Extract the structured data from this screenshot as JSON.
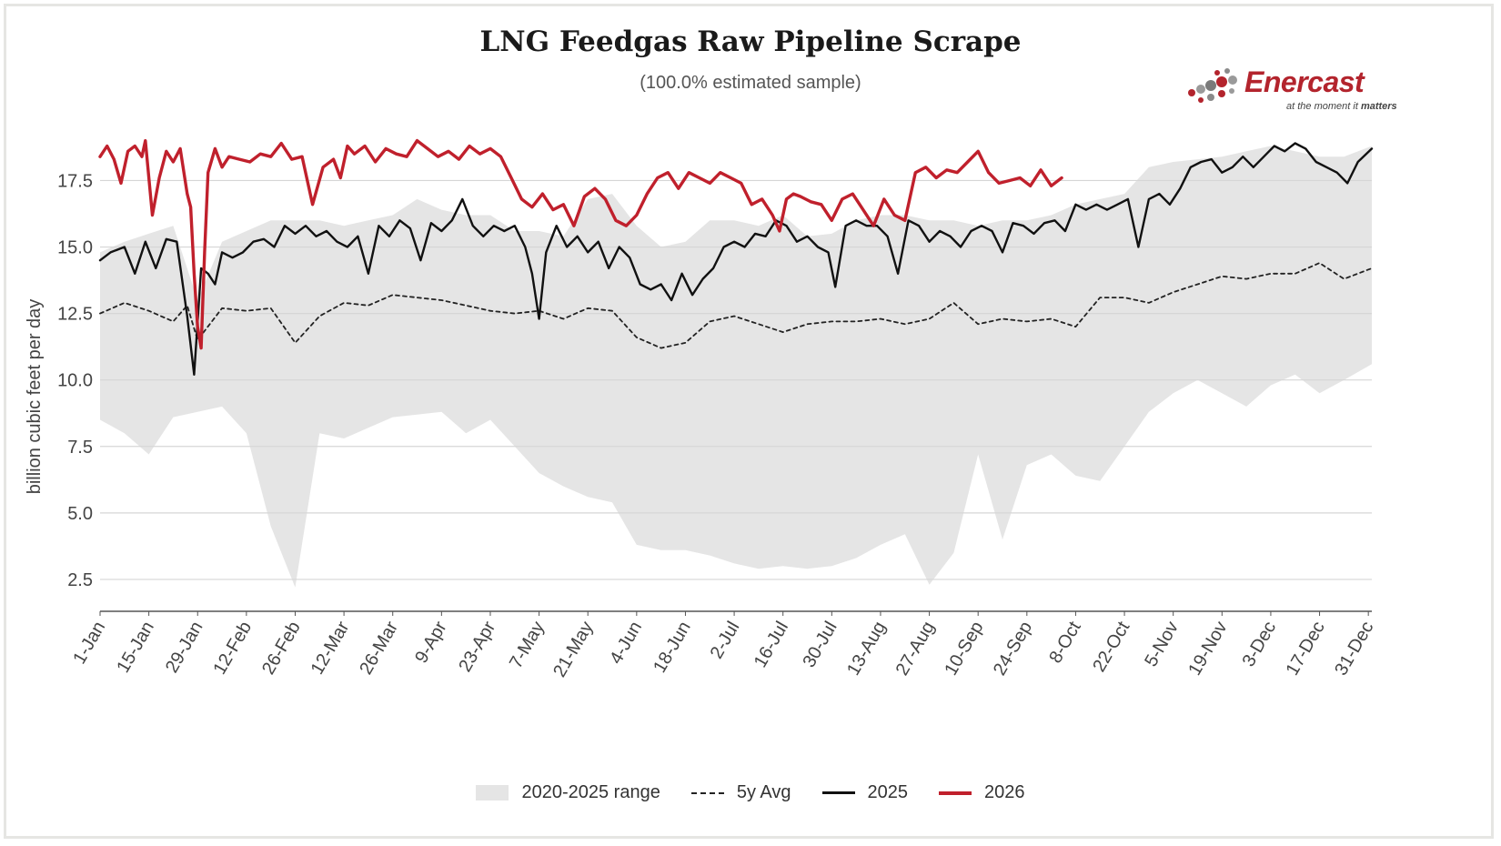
{
  "title": "LNG Feedgas Raw Pipeline Scrape",
  "subtitle": "(100.0% estimated sample)",
  "logo": {
    "name": "Enercast",
    "tagline_prefix": "at the moment it ",
    "tagline_emphasis": "matters"
  },
  "chart_data": {
    "type": "line",
    "title": "LNG Feedgas Raw Pipeline Scrape",
    "subtitle": "(100.0% estimated sample)",
    "xlabel": "",
    "ylabel": "billion cubic feet per day",
    "x_unit": "day of year",
    "xlim": [
      1,
      366
    ],
    "ylim": [
      1.3,
      19.5
    ],
    "y_ticks": [
      2.5,
      5.0,
      7.5,
      10.0,
      12.5,
      15.0,
      17.5
    ],
    "y_tick_labels": [
      "2.5",
      "5.0",
      "7.5",
      "10.0",
      "12.5",
      "15.0",
      "17.5"
    ],
    "x_ticks": [
      1,
      15,
      29,
      43,
      57,
      71,
      85,
      99,
      113,
      127,
      141,
      155,
      169,
      183,
      197,
      211,
      225,
      239,
      253,
      267,
      281,
      295,
      309,
      323,
      337,
      351,
      365
    ],
    "x_tick_labels": [
      "1-Jan",
      "15-Jan",
      "29-Jan",
      "12-Feb",
      "26-Feb",
      "12-Mar",
      "26-Mar",
      "9-Apr",
      "23-Apr",
      "7-May",
      "21-May",
      "4-Jun",
      "18-Jun",
      "2-Jul",
      "16-Jul",
      "30-Jul",
      "13-Aug",
      "27-Aug",
      "10-Sep",
      "24-Sep",
      "8-Oct",
      "22-Oct",
      "5-Nov",
      "19-Nov",
      "3-Dec",
      "17-Dec",
      "31-Dec"
    ],
    "grid": true,
    "legend_position": "bottom",
    "series": [
      {
        "name": "2020-2025 range",
        "kind": "band",
        "color": "#e5e5e5",
        "x": [
          1,
          8,
          15,
          22,
          29,
          36,
          43,
          50,
          57,
          64,
          71,
          78,
          85,
          92,
          99,
          106,
          113,
          120,
          127,
          134,
          141,
          148,
          155,
          162,
          169,
          176,
          183,
          190,
          197,
          204,
          211,
          218,
          225,
          232,
          239,
          246,
          253,
          260,
          267,
          274,
          281,
          288,
          295,
          302,
          309,
          316,
          323,
          330,
          337,
          344,
          351,
          358,
          366
        ],
        "low": [
          8.5,
          8.0,
          7.2,
          8.6,
          8.8,
          9.0,
          8.0,
          4.5,
          2.2,
          8.0,
          7.8,
          8.2,
          8.6,
          8.7,
          8.8,
          8.0,
          8.5,
          7.5,
          6.5,
          6.0,
          5.6,
          5.4,
          3.8,
          3.6,
          3.6,
          3.4,
          3.1,
          2.9,
          3.0,
          2.9,
          3.0,
          3.3,
          3.8,
          4.2,
          2.3,
          3.5,
          7.2,
          4.0,
          6.8,
          7.2,
          6.4,
          6.2,
          7.5,
          8.8,
          9.5,
          10.0,
          9.5,
          9.0,
          9.8,
          10.2,
          9.5,
          10.0,
          10.6
        ],
        "high": [
          14.8,
          15.2,
          15.5,
          15.8,
          13.0,
          15.2,
          15.6,
          16.0,
          16.0,
          16.0,
          15.8,
          16.0,
          16.2,
          16.8,
          16.4,
          16.2,
          16.2,
          15.6,
          15.6,
          15.4,
          16.8,
          17.0,
          15.8,
          15.0,
          15.2,
          16.0,
          16.0,
          15.8,
          16.2,
          15.4,
          15.5,
          16.0,
          16.2,
          16.2,
          16.0,
          16.0,
          15.8,
          16.0,
          16.0,
          16.2,
          16.6,
          16.8,
          17.0,
          18.0,
          18.2,
          18.3,
          18.4,
          18.6,
          18.8,
          18.6,
          18.4,
          18.4,
          18.8
        ]
      },
      {
        "name": "5y Avg",
        "kind": "line",
        "color": "#222222",
        "x": [
          1,
          8,
          15,
          22,
          26,
          29,
          36,
          43,
          50,
          57,
          64,
          71,
          78,
          85,
          92,
          99,
          106,
          113,
          120,
          127,
          134,
          141,
          148,
          155,
          162,
          169,
          176,
          183,
          190,
          197,
          204,
          211,
          218,
          225,
          232,
          239,
          246,
          253,
          260,
          267,
          274,
          281,
          288,
          295,
          302,
          309,
          316,
          323,
          330,
          337,
          344,
          351,
          358,
          366
        ],
        "y": [
          12.5,
          12.9,
          12.6,
          12.2,
          12.8,
          11.5,
          12.7,
          12.6,
          12.7,
          11.4,
          12.4,
          12.9,
          12.8,
          13.2,
          13.1,
          13.0,
          12.8,
          12.6,
          12.5,
          12.6,
          12.3,
          12.7,
          12.6,
          11.6,
          11.2,
          11.4,
          12.2,
          12.4,
          12.1,
          11.8,
          12.1,
          12.2,
          12.2,
          12.3,
          12.1,
          12.3,
          12.9,
          12.1,
          12.3,
          12.2,
          12.3,
          12.0,
          13.1,
          13.1,
          12.9,
          13.3,
          13.6,
          13.9,
          13.8,
          14.0,
          14.0,
          14.4,
          13.8,
          14.2
        ]
      },
      {
        "name": "2025",
        "kind": "line",
        "color": "#111111",
        "x": [
          1,
          4,
          8,
          11,
          14,
          17,
          20,
          23,
          26,
          28,
          30,
          32,
          34,
          36,
          39,
          42,
          45,
          48,
          51,
          54,
          57,
          60,
          63,
          66,
          69,
          72,
          75,
          78,
          81,
          84,
          87,
          90,
          93,
          96,
          99,
          102,
          105,
          108,
          111,
          114,
          117,
          120,
          123,
          125,
          127,
          129,
          132,
          135,
          138,
          141,
          144,
          147,
          150,
          153,
          156,
          159,
          162,
          165,
          168,
          171,
          174,
          177,
          180,
          183,
          186,
          189,
          192,
          195,
          198,
          201,
          204,
          207,
          210,
          212,
          215,
          218,
          221,
          224,
          227,
          230,
          233,
          236,
          239,
          242,
          245,
          248,
          251,
          254,
          257,
          260,
          263,
          266,
          269,
          272,
          275,
          278,
          281,
          284,
          287,
          290,
          293,
          296,
          299,
          302,
          305,
          308,
          311,
          314,
          317,
          320,
          323,
          326,
          329,
          332,
          335,
          338,
          341,
          344,
          347,
          350,
          353,
          356,
          359,
          362,
          366
        ],
        "y": [
          14.5,
          14.8,
          15.0,
          14.0,
          15.2,
          14.2,
          15.3,
          15.2,
          12.4,
          10.2,
          14.2,
          14.0,
          13.6,
          14.8,
          14.6,
          14.8,
          15.2,
          15.3,
          15.0,
          15.8,
          15.5,
          15.8,
          15.4,
          15.6,
          15.2,
          15.0,
          15.4,
          14.0,
          15.8,
          15.4,
          16.0,
          15.7,
          14.5,
          15.9,
          15.6,
          16.0,
          16.8,
          15.8,
          15.4,
          15.8,
          15.6,
          15.8,
          15.0,
          14.0,
          12.3,
          14.8,
          15.8,
          15.0,
          15.4,
          14.8,
          15.2,
          14.2,
          15.0,
          14.6,
          13.6,
          13.4,
          13.6,
          13.0,
          14.0,
          13.2,
          13.8,
          14.2,
          15.0,
          15.2,
          15.0,
          15.5,
          15.4,
          16.0,
          15.8,
          15.2,
          15.4,
          15.0,
          14.8,
          13.5,
          15.8,
          16.0,
          15.8,
          15.8,
          15.4,
          14.0,
          16.0,
          15.8,
          15.2,
          15.6,
          15.4,
          15.0,
          15.6,
          15.8,
          15.6,
          14.8,
          15.9,
          15.8,
          15.5,
          15.9,
          16.0,
          15.6,
          16.6,
          16.4,
          16.6,
          16.4,
          16.6,
          16.8,
          15.0,
          16.8,
          17.0,
          16.6,
          17.2,
          18.0,
          18.2,
          18.3,
          17.8,
          18.0,
          18.4,
          18.0,
          18.4,
          18.8,
          18.6,
          18.9,
          18.7,
          18.2,
          18.0,
          17.8,
          17.4,
          18.2,
          18.7
        ]
      },
      {
        "name": "2026",
        "kind": "line",
        "color": "#c0202c",
        "x": [
          1,
          3,
          5,
          7,
          9,
          11,
          13,
          14,
          16,
          18,
          20,
          22,
          24,
          26,
          27,
          28,
          29,
          30,
          31,
          32,
          34,
          36,
          38,
          41,
          44,
          47,
          50,
          53,
          56,
          59,
          62,
          65,
          68,
          70,
          72,
          74,
          77,
          80,
          83,
          86,
          89,
          92,
          95,
          98,
          101,
          104,
          107,
          110,
          113,
          116,
          119,
          122,
          125,
          128,
          131,
          134,
          137,
          140,
          143,
          146,
          149,
          152,
          155,
          158,
          161,
          164,
          167,
          170,
          173,
          176,
          179,
          182,
          185,
          188,
          191,
          194,
          196,
          198,
          200,
          202,
          205,
          208,
          211,
          214,
          217,
          220,
          223,
          226,
          229,
          232,
          235,
          238,
          241,
          244,
          247,
          250,
          253,
          256,
          259,
          262,
          265,
          268,
          271,
          274,
          277
        ],
        "y": [
          18.4,
          18.8,
          18.3,
          17.4,
          18.6,
          18.8,
          18.4,
          19.0,
          16.2,
          17.6,
          18.6,
          18.2,
          18.7,
          17.0,
          16.5,
          14.0,
          12.0,
          11.2,
          14.8,
          17.8,
          18.7,
          18.0,
          18.4,
          18.3,
          18.2,
          18.5,
          18.4,
          18.9,
          18.3,
          18.4,
          16.6,
          18.0,
          18.3,
          17.6,
          18.8,
          18.5,
          18.8,
          18.2,
          18.7,
          18.5,
          18.4,
          19.0,
          18.7,
          18.4,
          18.6,
          18.3,
          18.8,
          18.5,
          18.7,
          18.4,
          17.6,
          16.8,
          16.5,
          17.0,
          16.4,
          16.6,
          15.8,
          16.9,
          17.2,
          16.8,
          16.0,
          15.8,
          16.2,
          17.0,
          17.6,
          17.8,
          17.2,
          17.8,
          17.6,
          17.4,
          17.8,
          17.6,
          17.4,
          16.6,
          16.8,
          16.2,
          15.6,
          16.8,
          17.0,
          16.9,
          16.7,
          16.6,
          16.0,
          16.8,
          17.0,
          16.4,
          15.8,
          16.8,
          16.2,
          16.0,
          17.8,
          18.0,
          17.6,
          17.9,
          17.8,
          18.2,
          18.6,
          17.8,
          17.4,
          17.5,
          17.6,
          17.3,
          17.9,
          17.3,
          17.6
        ]
      }
    ]
  }
}
